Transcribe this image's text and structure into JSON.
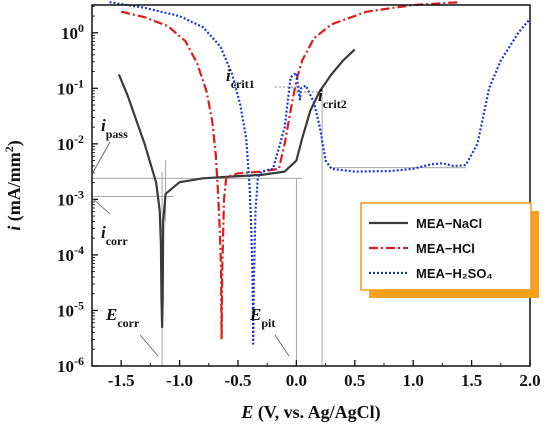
{
  "chart_data": {
    "type": "line",
    "xlabel": {
      "var": "E",
      "rest": " (V, vs. Ag/AgCl)"
    },
    "ylabel": {
      "var": "i",
      "rest": " (mA/mm",
      "sup": "2",
      "close": ")"
    },
    "xlim": [
      -1.75,
      2.0
    ],
    "ylim_exp": [
      -6,
      0.5
    ],
    "y_scale": "log",
    "xticks": [
      "-1.5",
      "-1.0",
      "-0.5",
      "0.0",
      "0.5",
      "1.0",
      "1.5",
      "2.0"
    ],
    "yticks": [
      {
        "base": "10",
        "exp": "0"
      },
      {
        "base": "10",
        "exp": "-1"
      },
      {
        "base": "10",
        "exp": "-2"
      },
      {
        "base": "10",
        "exp": "-3"
      },
      {
        "base": "10",
        "exp": "-4"
      },
      {
        "base": "10",
        "exp": "-5"
      },
      {
        "base": "10",
        "exp": "-6"
      }
    ],
    "legend": {
      "placement": "right",
      "entries": [
        "MEA−NaCl",
        "MEA−HCl",
        "MEA−H₂SO₄"
      ]
    },
    "annotations": {
      "i_crit1": {
        "main": "i",
        "sub": "crit1"
      },
      "i_crit2": {
        "main": "i",
        "sub": "crit2"
      },
      "i_pass": {
        "main": "i",
        "sub": "pass"
      },
      "i_corr": {
        "main": "i",
        "sub": "corr"
      },
      "E_corr": {
        "main": "E",
        "sub": "corr"
      },
      "E_pit": {
        "main": "E",
        "sub": "pit"
      }
    },
    "series": [
      {
        "color": "#3a3a3a",
        "style": "solid",
        "points": [
          [
            -1.52,
            -0.75
          ],
          [
            -1.45,
            -1.1
          ],
          [
            -1.4,
            -1.4
          ],
          [
            -1.35,
            -1.7
          ],
          [
            -1.3,
            -2.0
          ],
          [
            -1.25,
            -2.35
          ],
          [
            -1.2,
            -2.7
          ],
          [
            -1.17,
            -3.2
          ],
          [
            -1.16,
            -3.8
          ],
          [
            -1.155,
            -4.8
          ],
          [
            -1.15,
            -5.3
          ],
          [
            -1.145,
            -4.8
          ],
          [
            -1.14,
            -3.4
          ],
          [
            -1.12,
            -2.9
          ],
          [
            -1.0,
            -2.69
          ],
          [
            -0.8,
            -2.62
          ],
          [
            -0.5,
            -2.58
          ],
          [
            -0.3,
            -2.56
          ],
          [
            -0.1,
            -2.5
          ],
          [
            0.0,
            -2.3
          ],
          [
            0.05,
            -1.9
          ],
          [
            0.12,
            -1.4
          ],
          [
            0.2,
            -1.05
          ],
          [
            0.3,
            -0.75
          ],
          [
            0.4,
            -0.5
          ],
          [
            0.5,
            -0.3
          ]
        ]
      },
      {
        "color": "#e01b1b",
        "style": "dashdot",
        "points": [
          [
            -1.5,
            0.38
          ],
          [
            -1.3,
            0.28
          ],
          [
            -1.1,
            0.12
          ],
          [
            -0.95,
            -0.15
          ],
          [
            -0.85,
            -0.55
          ],
          [
            -0.77,
            -1.05
          ],
          [
            -0.72,
            -1.6
          ],
          [
            -0.69,
            -2.2
          ],
          [
            -0.67,
            -2.9
          ],
          [
            -0.655,
            -3.6
          ],
          [
            -0.645,
            -4.3
          ],
          [
            -0.64,
            -5.5
          ],
          [
            -0.635,
            -4.3
          ],
          [
            -0.62,
            -3.0
          ],
          [
            -0.6,
            -2.6
          ],
          [
            -0.5,
            -2.53
          ],
          [
            -0.3,
            -2.5
          ],
          [
            -0.15,
            -2.45
          ],
          [
            -0.1,
            -2.0
          ],
          [
            -0.05,
            -1.4
          ],
          [
            0.0,
            -0.85
          ],
          [
            0.05,
            -0.5
          ],
          [
            0.15,
            -0.1
          ],
          [
            0.3,
            0.15
          ],
          [
            0.6,
            0.38
          ],
          [
            1.0,
            0.5
          ],
          [
            1.4,
            0.55
          ]
        ]
      },
      {
        "color": "#1a35d6",
        "style": "dotted",
        "points": [
          [
            -1.6,
            0.55
          ],
          [
            -1.3,
            0.45
          ],
          [
            -1.0,
            0.3
          ],
          [
            -0.8,
            0.1
          ],
          [
            -0.65,
            -0.25
          ],
          [
            -0.55,
            -0.75
          ],
          [
            -0.48,
            -1.3
          ],
          [
            -0.43,
            -1.9
          ],
          [
            -0.4,
            -2.8
          ],
          [
            -0.385,
            -3.6
          ],
          [
            -0.375,
            -4.5
          ],
          [
            -0.37,
            -5.6
          ],
          [
            -0.365,
            -4.5
          ],
          [
            -0.35,
            -3.2
          ],
          [
            -0.33,
            -2.6
          ],
          [
            -0.3,
            -2.5
          ],
          [
            -0.2,
            -2.45
          ],
          [
            -0.1,
            -1.7
          ],
          [
            -0.05,
            -0.8
          ],
          [
            0.0,
            -0.72
          ],
          [
            0.03,
            -1.2
          ],
          [
            0.04,
            -1.0
          ],
          [
            0.08,
            -0.95
          ],
          [
            0.15,
            -1.25
          ],
          [
            0.2,
            -1.7
          ],
          [
            0.25,
            -2.3
          ],
          [
            0.3,
            -2.45
          ],
          [
            0.5,
            -2.5
          ],
          [
            0.8,
            -2.49
          ],
          [
            1.0,
            -2.45
          ],
          [
            1.15,
            -2.37
          ],
          [
            1.25,
            -2.35
          ],
          [
            1.35,
            -2.4
          ],
          [
            1.45,
            -2.38
          ],
          [
            1.55,
            -2.0
          ],
          [
            1.6,
            -1.5
          ],
          [
            1.65,
            -1.0
          ],
          [
            1.75,
            -0.5
          ],
          [
            1.9,
            0.0
          ],
          [
            2.0,
            0.25
          ]
        ]
      }
    ]
  }
}
